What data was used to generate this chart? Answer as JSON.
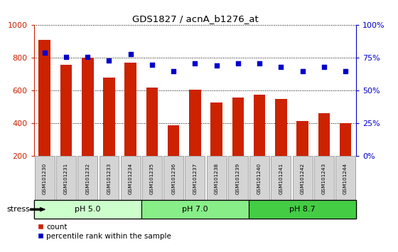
{
  "title": "GDS1827 / acnA_b1276_at",
  "categories": [
    "GSM101230",
    "GSM101231",
    "GSM101232",
    "GSM101233",
    "GSM101234",
    "GSM101235",
    "GSM101236",
    "GSM101237",
    "GSM101238",
    "GSM101239",
    "GSM101240",
    "GSM101241",
    "GSM101242",
    "GSM101243",
    "GSM101244"
  ],
  "counts": [
    910,
    760,
    800,
    680,
    770,
    620,
    390,
    605,
    530,
    560,
    575,
    550,
    415,
    465,
    400
  ],
  "percentiles": [
    79,
    76,
    76,
    73,
    78,
    70,
    65,
    71,
    69,
    71,
    71,
    68,
    65,
    68,
    65
  ],
  "groups": [
    {
      "label": "pH 5.0",
      "start": 0,
      "end": 5,
      "color": "#ccffcc"
    },
    {
      "label": "pH 7.0",
      "start": 5,
      "end": 10,
      "color": "#88ee88"
    },
    {
      "label": "pH 8.7",
      "start": 10,
      "end": 15,
      "color": "#44cc44"
    }
  ],
  "bar_color": "#cc2200",
  "dot_color": "#0000cc",
  "ylim_left": [
    200,
    1000
  ],
  "ylim_right": [
    0,
    100
  ],
  "yticks_left": [
    200,
    400,
    600,
    800,
    1000
  ],
  "yticks_right": [
    0,
    25,
    50,
    75,
    100
  ],
  "background_color": "#ffffff",
  "plot_bg_color": "#ffffff",
  "tickbox_color": "#d4d4d4",
  "stress_label": "stress"
}
